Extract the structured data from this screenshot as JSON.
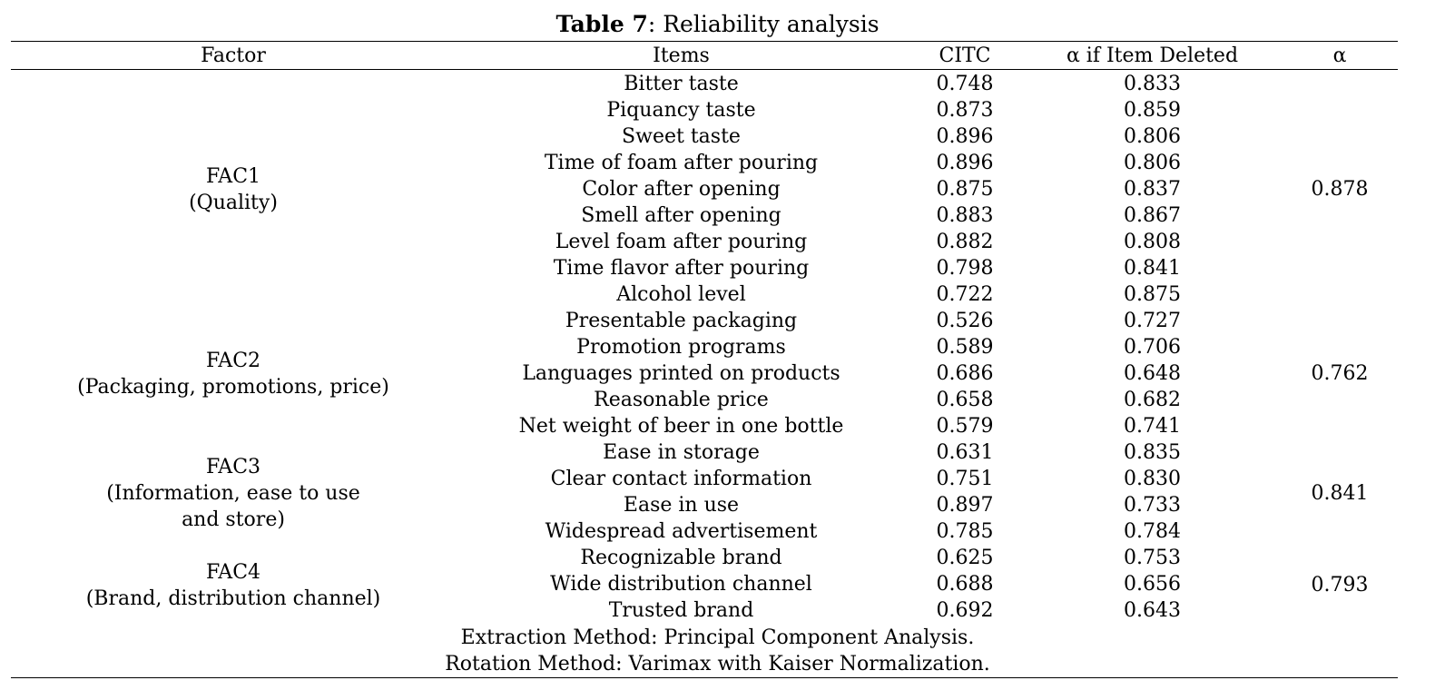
{
  "caption": {
    "label": "Table 7",
    "title": ": Reliability analysis"
  },
  "headers": {
    "factor": "Factor",
    "items": "Items",
    "citc": "CITC",
    "alpha_if_deleted": "α if Item Deleted",
    "alpha": "α"
  },
  "rows": [
    {
      "item": "Bitter taste",
      "citc": "0.748",
      "aid": "0.833"
    },
    {
      "item": "Piquancy taste",
      "citc": "0.873",
      "aid": "0.859"
    },
    {
      "item": "Sweet taste",
      "citc": "0.896",
      "aid": "0.806"
    },
    {
      "item": "Time of foam after pouring",
      "citc": "0.896",
      "aid": "0.806"
    },
    {
      "item": "Color after opening",
      "citc": "0.875",
      "aid": "0.837"
    },
    {
      "item": "Smell after opening",
      "citc": "0.883",
      "aid": "0.867"
    },
    {
      "item": "Level foam after pouring",
      "citc": "0.882",
      "aid": "0.808"
    },
    {
      "item": "Time flavor after pouring",
      "citc": "0.798",
      "aid": "0.841"
    },
    {
      "item": "Alcohol level",
      "citc": "0.722",
      "aid": "0.875"
    },
    {
      "item": "Presentable packaging",
      "citc": "0.526",
      "aid": "0.727"
    },
    {
      "item": "Promotion programs",
      "citc": "0.589",
      "aid": "0.706"
    },
    {
      "item": "Languages printed on products",
      "citc": "0.686",
      "aid": "0.648"
    },
    {
      "item": "Reasonable price",
      "citc": "0.658",
      "aid": "0.682"
    },
    {
      "item": "Net weight of beer in one bottle",
      "citc": "0.579",
      "aid": "0.741"
    },
    {
      "item": "Ease in storage",
      "citc": "0.631",
      "aid": "0.835"
    },
    {
      "item": "Clear contact information",
      "citc": "0.751",
      "aid": "0.830"
    },
    {
      "item": "Ease in use",
      "citc": "0.897",
      "aid": "0.733"
    },
    {
      "item": "Widespread advertisement",
      "citc": "0.785",
      "aid": "0.784"
    },
    {
      "item": "Recognizable brand",
      "citc": "0.625",
      "aid": "0.753"
    },
    {
      "item": "Wide distribution channel",
      "citc": "0.688",
      "aid": "0.656"
    },
    {
      "item": "Trusted brand",
      "citc": "0.692",
      "aid": "0.643"
    }
  ],
  "factors": [
    {
      "name": "FAC1",
      "desc_lines": [
        "(Quality)"
      ],
      "alpha": "0.878"
    },
    {
      "name": "FAC2",
      "desc_lines": [
        "(Packaging, promotions, price)"
      ],
      "alpha": "0.762"
    },
    {
      "name": "FAC3",
      "desc_lines": [
        "(Information, ease to use",
        "and store)"
      ],
      "alpha": "0.841"
    },
    {
      "name": "FAC4",
      "desc_lines": [
        "(Brand, distribution channel)"
      ],
      "alpha": "0.793"
    }
  ],
  "notes": {
    "extraction": "Extraction Method: Principal Component Analysis.",
    "rotation": "Rotation Method: Varimax with Kaiser Normalization."
  }
}
